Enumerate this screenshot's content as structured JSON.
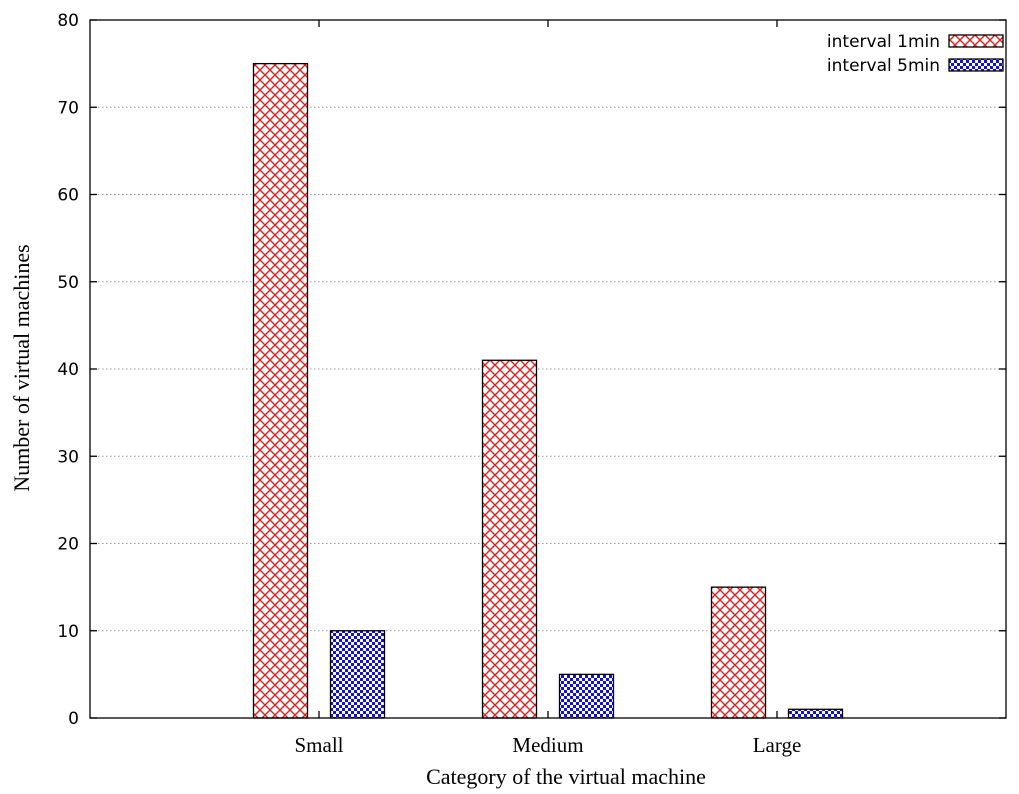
{
  "chart_data": {
    "type": "bar",
    "categories": [
      "Small",
      "Medium",
      "Large"
    ],
    "series": [
      {
        "name": "interval 1min",
        "values": [
          75,
          41,
          15
        ],
        "color": "#e02020",
        "pattern": "crosshatch"
      },
      {
        "name": "interval 5min",
        "values": [
          10,
          5,
          1
        ],
        "color": "#1010e0",
        "pattern": "checker"
      }
    ],
    "title": "",
    "xlabel": "Category of the virtual machine",
    "ylabel": "Number of virtual machines",
    "ylim": [
      0,
      80
    ],
    "yticks": [
      0,
      10,
      20,
      30,
      40,
      50,
      60,
      70,
      80
    ],
    "grid": true,
    "legend_position": "top-right"
  }
}
